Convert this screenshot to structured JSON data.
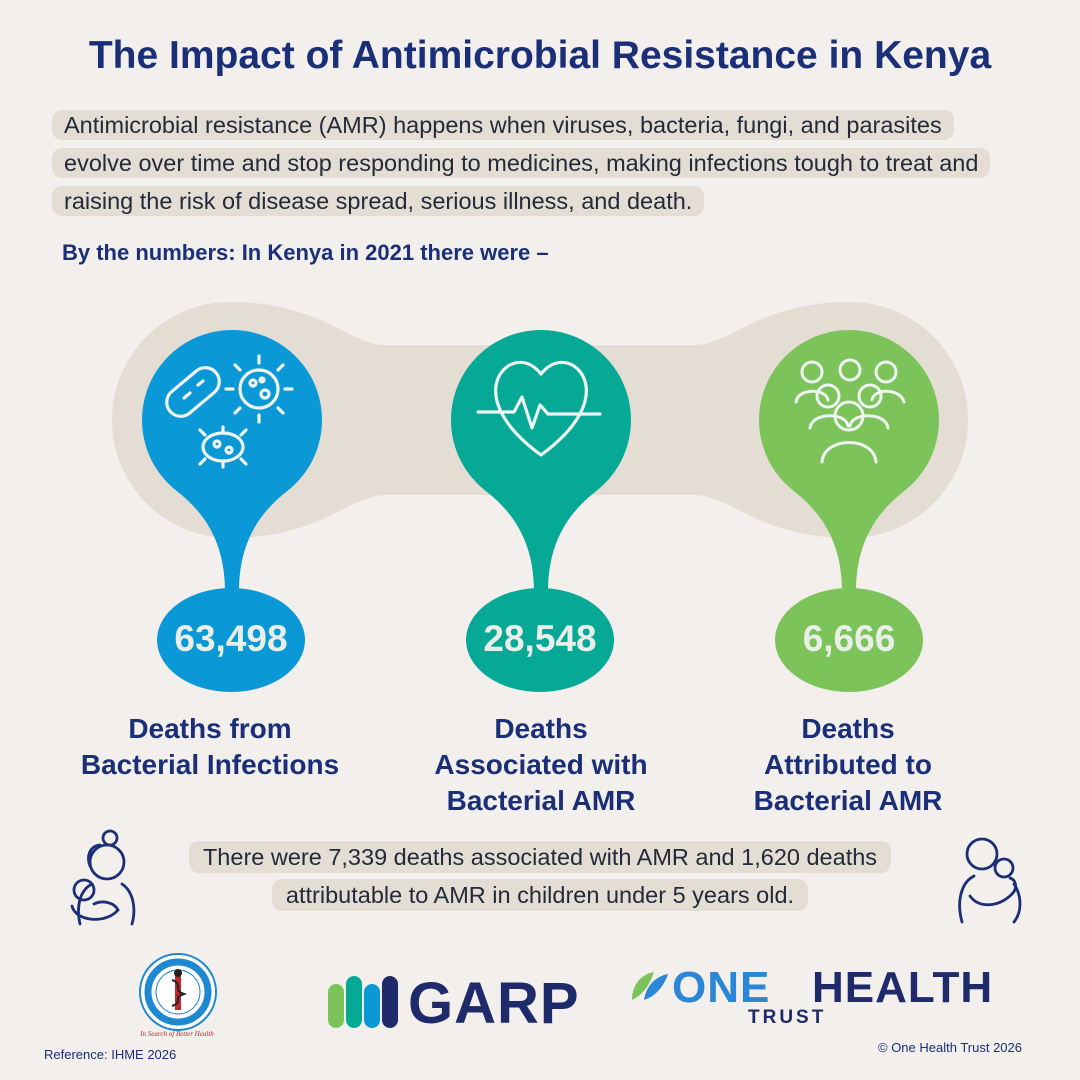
{
  "title": "The Impact of Antimicrobial Resistance in Kenya",
  "intro": "Antimicrobial resistance (AMR) happens when viruses, bacteria, fungi, and parasites evolve over time and stop responding to medicines, making infections tough to treat and raising the risk of disease spread, serious illness, and death.",
  "subhead": "By the numbers: In Kenya in 2021 there were –",
  "stats": [
    {
      "value": "63,498",
      "label_lines": [
        "Deaths from",
        "Bacterial Infections"
      ],
      "icon": "bacteria-icon",
      "color": "#0b98d6"
    },
    {
      "value": "28,548",
      "label_lines": [
        "Deaths",
        "Associated with",
        "Bacterial AMR"
      ],
      "icon": "heartbeat-icon",
      "color": "#05a996"
    },
    {
      "value": "6,666",
      "label_lines": [
        "Deaths",
        "Attributed to",
        "Bacterial AMR"
      ],
      "icon": "people-group-icon",
      "color": "#7cc35a"
    }
  ],
  "children_note": "There were 7,339 deaths associated with AMR and 1,620 deaths attributable to AMR in children under 5 years old.",
  "logos": {
    "kemri_tagline": "In Search of Better Health",
    "garp": "GARP",
    "onehealth_one": "ONE",
    "onehealth_health": "HEALTH",
    "onehealth_trust": "TRUST"
  },
  "reference": "Reference: IHME 2026",
  "copyright": "© One Health Trust 2026",
  "colors": {
    "title": "#1a2f78",
    "band": "#e3ddd3",
    "background": "#f2efec"
  }
}
